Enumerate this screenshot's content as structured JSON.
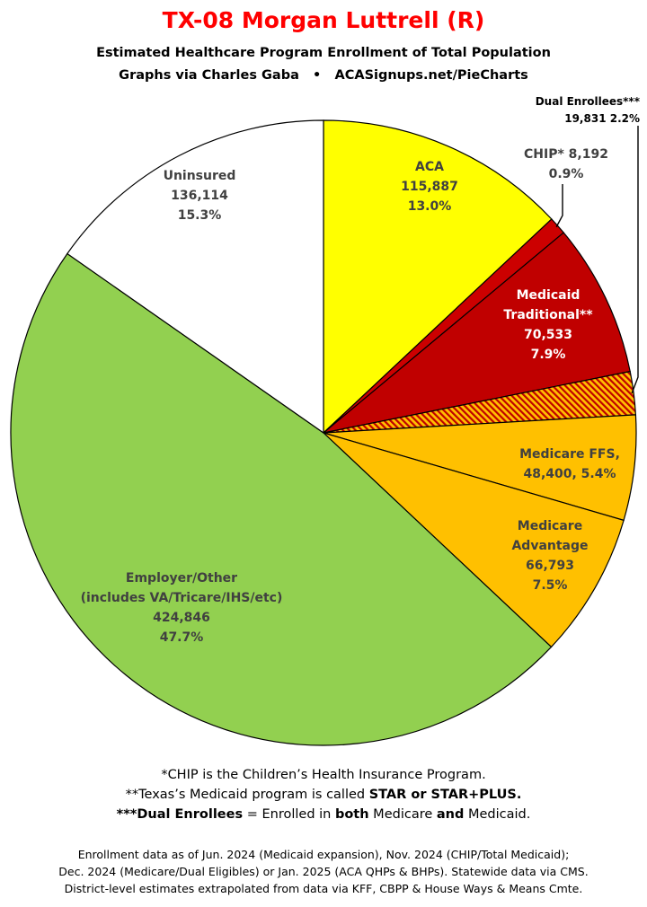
{
  "title": "TX-08 Morgan Luttrell (R)",
  "subtitle": "Estimated Healthcare Program Enrollment of Total Population",
  "credit_left": "Graphs via Charles Gaba",
  "credit_bullet": "•",
  "credit_right": "ACASignups.net/PieCharts",
  "colors": {
    "aca": "#ffff00",
    "chip": "#cc0000",
    "medicaid": "#c00000",
    "dual_bg": "#ffc000",
    "dual_hatch": "#c00000",
    "medicare": "#ffc000",
    "employer": "#92d050",
    "uninsured": "#ffffff",
    "title": "#ff0000"
  },
  "chart_data": {
    "type": "pie",
    "slices": [
      {
        "key": "aca",
        "lines": [
          "ACA",
          "115,887",
          "13.0%"
        ],
        "value": 115887,
        "percent": 13.0
      },
      {
        "key": "chip",
        "lines": [
          "CHIP* 8,192",
          "0.9%"
        ],
        "value": 8192,
        "percent": 0.9
      },
      {
        "key": "medicaid",
        "lines": [
          "Medicaid",
          "Traditional**",
          "70,533",
          "7.9%"
        ],
        "value": 70533,
        "percent": 7.9
      },
      {
        "key": "dual",
        "lines": [
          "Dual Enrollees***",
          "19,831 2.2%"
        ],
        "value": 19831,
        "percent": 2.2
      },
      {
        "key": "medicare_ffs",
        "lines": [
          "Medicare FFS,",
          "48,400, 5.4%"
        ],
        "value": 48400,
        "percent": 5.4
      },
      {
        "key": "medicare_adv",
        "lines": [
          "Medicare",
          "Advantage",
          "66,793",
          "7.5%"
        ],
        "value": 66793,
        "percent": 7.5
      },
      {
        "key": "employer",
        "lines": [
          "Employer/Other",
          "(includes VA/Tricare/IHS/etc)",
          "424,846",
          "47.7%"
        ],
        "value": 424846,
        "percent": 47.7
      },
      {
        "key": "uninsured",
        "lines": [
          "Uninsured",
          "136,114",
          "15.3%"
        ],
        "value": 136114,
        "percent": 15.3
      }
    ]
  },
  "notes": {
    "chip": "*CHIP is the Children’s Health Insurance Program.",
    "medicaid_pre": "**Texas’s Medicaid program is called ",
    "medicaid_bold": "STAR or STAR+PLUS.",
    "dual_bold": "***Dual Enrollees",
    "dual_mid1": " = Enrolled in ",
    "dual_bold2": "both",
    "dual_mid2": " Medicare ",
    "dual_bold3": "and",
    "dual_end": " Medicaid."
  },
  "footer": [
    "Enrollment data as of Jun. 2024 (Medicaid expansion), Nov. 2024 (CHIP/Total Medicaid);",
    "Dec. 2024 (Medicare/Dual Eligibles) or Jan. 2025 (ACA QHPs & BHPs). Statewide data via CMS.",
    "District-level estimates extrapolated from data via KFF, CBPP & House Ways & Means Cmte."
  ]
}
